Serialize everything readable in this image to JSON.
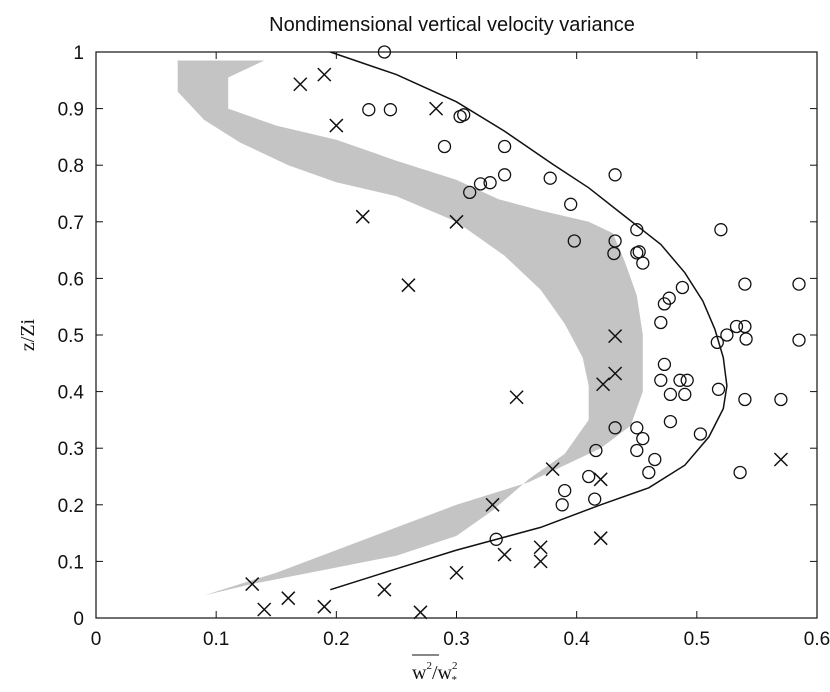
{
  "chart_data": {
    "type": "scatter",
    "title": "Nondimensional vertical velocity variance",
    "xlabel": "w'²/w*²",
    "xlabel_parts": {
      "num": "w",
      "num_sup": "2",
      "den": "w",
      "den_sub": "*",
      "den_sup": "2"
    },
    "ylabel": "z/Zi",
    "xlim": [
      0,
      0.6
    ],
    "ylim": [
      0,
      1
    ],
    "xticks": [
      0,
      0.1,
      0.2,
      0.3,
      0.4,
      0.5,
      0.6
    ],
    "yticks": [
      0,
      0.1,
      0.2,
      0.3,
      0.4,
      0.5,
      0.6,
      0.7,
      0.8,
      0.9,
      1
    ],
    "xtick_labels": [
      "0",
      "0.1",
      "0.2",
      "0.3",
      "0.4",
      "0.5",
      "0.6"
    ],
    "ytick_labels": [
      "0",
      "0.1",
      "0.2",
      "0.3",
      "0.4",
      "0.5",
      "0.6",
      "0.7",
      "0.8",
      "0.9",
      "1"
    ],
    "grid": false,
    "colors": {
      "markers": "#111111",
      "curve": "#111111",
      "band": "#c4c4c4"
    },
    "series": [
      {
        "marker": "circle",
        "points": [
          [
            0.24,
            1.0
          ],
          [
            0.227,
            0.898
          ],
          [
            0.245,
            0.898
          ],
          [
            0.303,
            0.886
          ],
          [
            0.306,
            0.889
          ],
          [
            0.29,
            0.833
          ],
          [
            0.34,
            0.833
          ],
          [
            0.432,
            0.783
          ],
          [
            0.34,
            0.783
          ],
          [
            0.32,
            0.767
          ],
          [
            0.328,
            0.769
          ],
          [
            0.378,
            0.777
          ],
          [
            0.311,
            0.752
          ],
          [
            0.395,
            0.731
          ],
          [
            0.45,
            0.686
          ],
          [
            0.52,
            0.686
          ],
          [
            0.398,
            0.666
          ],
          [
            0.432,
            0.666
          ],
          [
            0.431,
            0.644
          ],
          [
            0.45,
            0.645
          ],
          [
            0.452,
            0.647
          ],
          [
            0.455,
            0.627
          ],
          [
            0.54,
            0.59
          ],
          [
            0.585,
            0.59
          ],
          [
            0.488,
            0.584
          ],
          [
            0.477,
            0.565
          ],
          [
            0.473,
            0.555
          ],
          [
            0.525,
            0.5
          ],
          [
            0.533,
            0.515
          ],
          [
            0.54,
            0.515
          ],
          [
            0.541,
            0.493
          ],
          [
            0.517,
            0.487
          ],
          [
            0.585,
            0.491
          ],
          [
            0.47,
            0.522
          ],
          [
            0.473,
            0.448
          ],
          [
            0.47,
            0.42
          ],
          [
            0.486,
            0.42
          ],
          [
            0.492,
            0.42
          ],
          [
            0.478,
            0.395
          ],
          [
            0.49,
            0.395
          ],
          [
            0.518,
            0.404
          ],
          [
            0.54,
            0.386
          ],
          [
            0.57,
            0.386
          ],
          [
            0.478,
            0.347
          ],
          [
            0.432,
            0.336
          ],
          [
            0.45,
            0.336
          ],
          [
            0.455,
            0.317
          ],
          [
            0.503,
            0.325
          ],
          [
            0.416,
            0.296
          ],
          [
            0.45,
            0.296
          ],
          [
            0.465,
            0.28
          ],
          [
            0.46,
            0.257
          ],
          [
            0.536,
            0.257
          ],
          [
            0.41,
            0.25
          ],
          [
            0.39,
            0.225
          ],
          [
            0.388,
            0.2
          ],
          [
            0.415,
            0.21
          ],
          [
            0.333,
            0.139
          ]
        ]
      },
      {
        "marker": "cross",
        "points": [
          [
            0.17,
            0.943
          ],
          [
            0.19,
            0.96
          ],
          [
            0.2,
            0.87
          ],
          [
            0.283,
            0.9
          ],
          [
            0.222,
            0.709
          ],
          [
            0.3,
            0.7
          ],
          [
            0.26,
            0.588
          ],
          [
            0.432,
            0.498
          ],
          [
            0.432,
            0.432
          ],
          [
            0.422,
            0.413
          ],
          [
            0.35,
            0.39
          ],
          [
            0.38,
            0.263
          ],
          [
            0.42,
            0.245
          ],
          [
            0.33,
            0.2
          ],
          [
            0.42,
            0.141
          ],
          [
            0.37,
            0.125
          ],
          [
            0.37,
            0.1
          ],
          [
            0.34,
            0.112
          ],
          [
            0.3,
            0.08
          ],
          [
            0.57,
            0.28
          ],
          [
            0.13,
            0.06
          ],
          [
            0.16,
            0.035
          ],
          [
            0.14,
            0.015
          ],
          [
            0.19,
            0.02
          ],
          [
            0.24,
            0.05
          ],
          [
            0.27,
            0.01
          ]
        ]
      },
      {
        "marker": "line",
        "points": [
          [
            0.195,
            1.0
          ],
          [
            0.25,
            0.96
          ],
          [
            0.3,
            0.912
          ],
          [
            0.34,
            0.86
          ],
          [
            0.38,
            0.802
          ],
          [
            0.41,
            0.76
          ],
          [
            0.44,
            0.71
          ],
          [
            0.47,
            0.66
          ],
          [
            0.49,
            0.61
          ],
          [
            0.505,
            0.56
          ],
          [
            0.515,
            0.51
          ],
          [
            0.522,
            0.46
          ],
          [
            0.525,
            0.41
          ],
          [
            0.522,
            0.37
          ],
          [
            0.51,
            0.32
          ],
          [
            0.49,
            0.27
          ],
          [
            0.46,
            0.23
          ],
          [
            0.42,
            0.2
          ],
          [
            0.37,
            0.16
          ],
          [
            0.3,
            0.12
          ],
          [
            0.25,
            0.087
          ],
          [
            0.195,
            0.05
          ]
        ]
      },
      {
        "marker": "band",
        "points": [
          [
            0.068,
            0.985
          ],
          [
            0.14,
            0.985
          ],
          [
            0.11,
            0.955
          ],
          [
            0.11,
            0.9
          ],
          [
            0.15,
            0.87
          ],
          [
            0.2,
            0.845
          ],
          [
            0.25,
            0.808
          ],
          [
            0.3,
            0.774
          ],
          [
            0.335,
            0.74
          ],
          [
            0.37,
            0.72
          ],
          [
            0.41,
            0.7
          ],
          [
            0.43,
            0.68
          ],
          [
            0.44,
            0.63
          ],
          [
            0.45,
            0.57
          ],
          [
            0.455,
            0.5
          ],
          [
            0.455,
            0.4
          ],
          [
            0.445,
            0.34
          ],
          [
            0.42,
            0.3
          ],
          [
            0.36,
            0.24
          ],
          [
            0.3,
            0.2
          ],
          [
            0.25,
            0.16
          ],
          [
            0.2,
            0.12
          ],
          [
            0.15,
            0.08
          ],
          [
            0.12,
            0.06
          ],
          [
            0.09,
            0.04
          ],
          [
            0.13,
            0.06
          ],
          [
            0.19,
            0.085
          ],
          [
            0.25,
            0.11
          ],
          [
            0.3,
            0.145
          ],
          [
            0.33,
            0.19
          ],
          [
            0.36,
            0.245
          ],
          [
            0.39,
            0.29
          ],
          [
            0.41,
            0.35
          ],
          [
            0.41,
            0.41
          ],
          [
            0.405,
            0.46
          ],
          [
            0.39,
            0.52
          ],
          [
            0.37,
            0.58
          ],
          [
            0.34,
            0.64
          ],
          [
            0.3,
            0.7
          ],
          [
            0.25,
            0.745
          ],
          [
            0.2,
            0.77
          ],
          [
            0.16,
            0.8
          ],
          [
            0.12,
            0.84
          ],
          [
            0.09,
            0.88
          ],
          [
            0.068,
            0.93
          ]
        ]
      }
    ]
  }
}
